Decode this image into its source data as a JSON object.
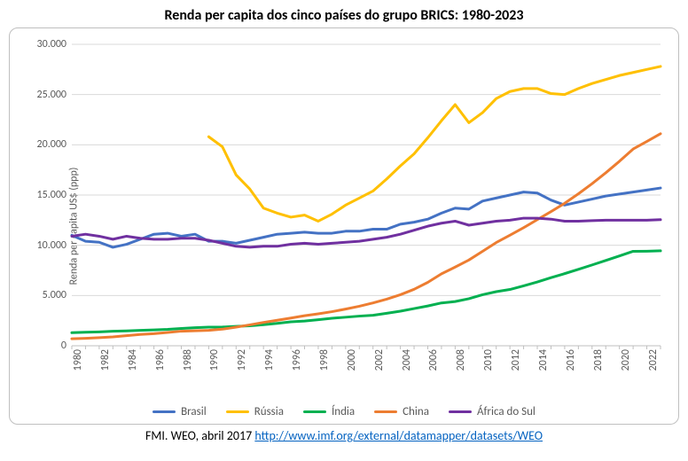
{
  "chart": {
    "type": "line",
    "title": "Renda per capita dos cinco países do grupo BRICS: 1980-2023",
    "title_fontsize": 16,
    "title_weight": "bold",
    "title_color": "#000000",
    "ylabel": "Renda per capita US$ (ppp)",
    "ylabel_fontsize": 12,
    "axis_label_color": "#595959",
    "tick_fontsize": 12,
    "background_color": "#ffffff",
    "frame_border_color": "#bfbfbf",
    "frame_border_radius": 10,
    "grid_color": "#d9d9d9",
    "axis_line_color": "#bfbfbf",
    "line_width": 3,
    "ylim": [
      0,
      30000
    ],
    "ytick_step": 5000,
    "yticks": [
      0,
      5000,
      10000,
      15000,
      20000,
      25000,
      30000
    ],
    "ytick_labels": [
      "0",
      "5.000",
      "10.000",
      "15.000",
      "20.000",
      "25.000",
      "30.000"
    ],
    "x_categories": [
      "1980",
      "1981",
      "1982",
      "1983",
      "1984",
      "1985",
      "1986",
      "1987",
      "1988",
      "1989",
      "1990",
      "1991",
      "1992",
      "1993",
      "1994",
      "1995",
      "1996",
      "1997",
      "1998",
      "1999",
      "2000",
      "2001",
      "2002",
      "2003",
      "2004",
      "2005",
      "2006",
      "2007",
      "2008",
      "2009",
      "2010",
      "2011",
      "2012",
      "2013",
      "2014",
      "2015",
      "2016",
      "2017",
      "2018",
      "2019",
      "2020",
      "2021",
      "2022",
      "2023"
    ],
    "x_tick_every": 2,
    "x_tick_rotation": -90,
    "series": [
      {
        "name": "Brasil",
        "color": "#4472c4",
        "values": [
          11000,
          10400,
          10300,
          9800,
          10100,
          10600,
          11100,
          11200,
          10900,
          11100,
          10400,
          10400,
          10200,
          10500,
          10800,
          11100,
          11200,
          11300,
          11200,
          11200,
          11400,
          11400,
          11600,
          11600,
          12100,
          12300,
          12600,
          13200,
          13700,
          13600,
          14400,
          14700,
          15000,
          15300,
          15200,
          14500,
          14000,
          14300,
          14600,
          14900,
          15100,
          15300,
          15500,
          15700
        ]
      },
      {
        "name": "Rússia",
        "color": "#ffc000",
        "values": [
          null,
          null,
          null,
          null,
          null,
          null,
          null,
          null,
          null,
          null,
          20800,
          19800,
          17000,
          15600,
          13700,
          13200,
          12800,
          13000,
          12400,
          13100,
          14000,
          14700,
          15400,
          16600,
          17900,
          19100,
          20700,
          22400,
          24000,
          22200,
          23200,
          24600,
          25300,
          25600,
          25600,
          25100,
          25000,
          25600,
          26100,
          26500,
          26900,
          27200,
          27500,
          27800
        ]
      },
      {
        "name": "Índia",
        "color": "#00b050",
        "values": [
          1300,
          1350,
          1380,
          1440,
          1480,
          1530,
          1580,
          1630,
          1720,
          1800,
          1850,
          1860,
          1930,
          1990,
          2100,
          2230,
          2380,
          2460,
          2590,
          2740,
          2840,
          2950,
          3030,
          3230,
          3440,
          3700,
          3960,
          4260,
          4400,
          4680,
          5080,
          5380,
          5600,
          5960,
          6350,
          6780,
          7180,
          7600,
          8040,
          8490,
          8940,
          9400,
          9410,
          9450
        ]
      },
      {
        "name": "China",
        "color": "#ed7d31",
        "values": [
          700,
          740,
          800,
          880,
          1000,
          1120,
          1200,
          1320,
          1450,
          1490,
          1530,
          1650,
          1850,
          2080,
          2320,
          2540,
          2760,
          2990,
          3180,
          3390,
          3650,
          3930,
          4260,
          4640,
          5080,
          5620,
          6310,
          7160,
          7830,
          8530,
          9400,
          10270,
          11000,
          11750,
          12550,
          13350,
          14180,
          15120,
          16130,
          17210,
          18360,
          19580,
          20330,
          21100
        ]
      },
      {
        "name": "África do Sul",
        "color": "#7030a0",
        "values": [
          10900,
          11100,
          10900,
          10600,
          10900,
          10700,
          10600,
          10600,
          10700,
          10700,
          10500,
          10200,
          9900,
          9800,
          9900,
          9900,
          10100,
          10200,
          10100,
          10200,
          10300,
          10400,
          10600,
          10800,
          11100,
          11500,
          11900,
          12200,
          12400,
          12000,
          12200,
          12400,
          12500,
          12700,
          12700,
          12600,
          12400,
          12400,
          12450,
          12500,
          12500,
          12500,
          12500,
          12550
        ]
      }
    ],
    "legend": {
      "position": "bottom",
      "fontsize": 13,
      "swatch_width": 26,
      "swatch_height": 3
    }
  },
  "source": {
    "prefix": "FMI. WEO, abril 2017 ",
    "link_text": "http://www.imf.org/external/datamapper/datasets/WEO",
    "link_href": "http://www.imf.org/external/datamapper/datasets/WEO",
    "fontsize": 14,
    "color": "#000000",
    "link_color": "#0563c1"
  }
}
